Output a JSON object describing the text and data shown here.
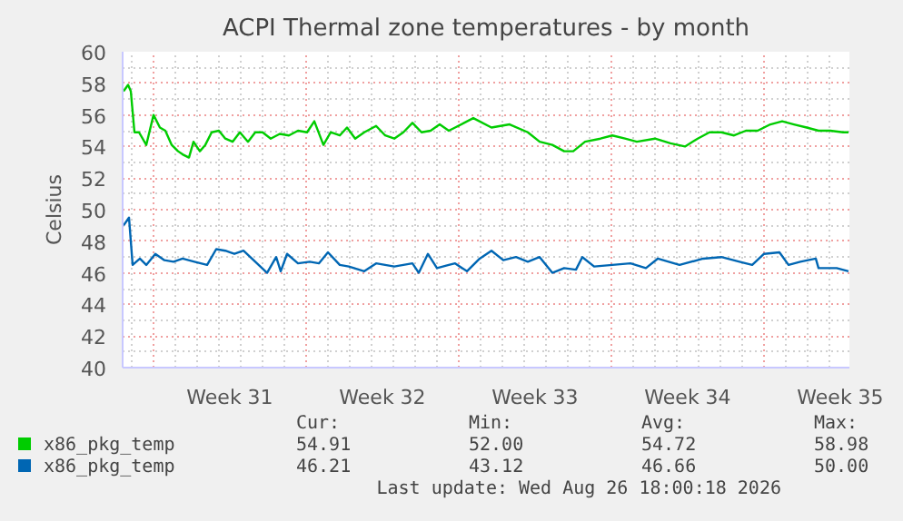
{
  "chart_data": {
    "type": "line",
    "title": "ACPI Thermal zone temperatures - by month",
    "ylabel": "Celsius",
    "xlim": [
      "2026-07-25T14:00",
      "2026-08-27T22:00"
    ],
    "ylim": [
      40,
      60
    ],
    "xticks": [
      {
        "value": "2026-07-27",
        "label": null
      },
      {
        "value": "2026-07-30T12:00",
        "label": "Week 31"
      },
      {
        "value": "2026-08-03",
        "label": null
      },
      {
        "value": "2026-08-06T12:00",
        "label": "Week 32"
      },
      {
        "value": "2026-08-10",
        "label": null
      },
      {
        "value": "2026-08-13T12:00",
        "label": "Week 33"
      },
      {
        "value": "2026-08-17",
        "label": null
      },
      {
        "value": "2026-08-20T12:00",
        "label": "Week 34"
      },
      {
        "value": "2026-08-24",
        "label": null
      },
      {
        "value": "2026-08-27T12:00",
        "label": "Week 35"
      }
    ],
    "yticks": [
      40,
      42,
      44,
      46,
      48,
      50,
      52,
      54,
      56,
      58,
      60
    ],
    "grid": true,
    "legend": "bottom",
    "marker": "none",
    "line_style": "solid",
    "series": [
      {
        "name": "x86_pkg_temp",
        "color": "#00cc00",
        "x": [
          "2026-07-25T15:00",
          "2026-07-25T20:00",
          "2026-07-25T23:00",
          "2026-07-26T03:00",
          "2026-07-26T08:00",
          "2026-07-26T16:00",
          "2026-07-27T00:00",
          "2026-07-27T07:00",
          "2026-07-27T13:00",
          "2026-07-27T20:00",
          "2026-07-28T03:00",
          "2026-07-28T08:00",
          "2026-07-28T15:00",
          "2026-07-28T20:00",
          "2026-07-29T03:00",
          "2026-07-29T09:00",
          "2026-07-29T16:00",
          "2026-07-30T00:00",
          "2026-07-30T07:00",
          "2026-07-30T15:00",
          "2026-07-30T23:00",
          "2026-07-31T08:00",
          "2026-07-31T16:00",
          "2026-08-01T00:00",
          "2026-08-01T09:00",
          "2026-08-01T19:00",
          "2026-08-02T05:00",
          "2026-08-02T15:00",
          "2026-08-03T01:00",
          "2026-08-03T09:00",
          "2026-08-03T19:00",
          "2026-08-04T03:00",
          "2026-08-04T13:00",
          "2026-08-04T21:00",
          "2026-08-05T06:00",
          "2026-08-05T16:00",
          "2026-08-06T05:00",
          "2026-08-06T15:00",
          "2026-08-07T01:00",
          "2026-08-07T11:00",
          "2026-08-07T21:00",
          "2026-08-08T07:00",
          "2026-08-08T17:00",
          "2026-08-09T03:00",
          "2026-08-09T13:00",
          "2026-08-09T20:00",
          "2026-08-10T16:00",
          "2026-08-11T12:00",
          "2026-08-12T08:00",
          "2026-08-13T04:00",
          "2026-08-13T17:00",
          "2026-08-14T07:00",
          "2026-08-14T20:00",
          "2026-08-15T06:00",
          "2026-08-15T19:00",
          "2026-08-16T12:00",
          "2026-08-17T01:00",
          "2026-08-17T15:00",
          "2026-08-18T04:00",
          "2026-08-19T00:00",
          "2026-08-19T17:00",
          "2026-08-20T09:00",
          "2026-08-20T23:00",
          "2026-08-21T12:00",
          "2026-08-22T01:00",
          "2026-08-22T15:00",
          "2026-08-23T04:00",
          "2026-08-23T17:00",
          "2026-08-24T07:00",
          "2026-08-24T20:00",
          "2026-08-25T09:00",
          "2026-08-25T23:00",
          "2026-08-26T12:00",
          "2026-08-27T01:00",
          "2026-08-27T15:00",
          "2026-08-27T21:00"
        ],
        "values": [
          57.5,
          57.9,
          57.5,
          54.9,
          54.9,
          54.1,
          56.0,
          55.2,
          55.0,
          54.1,
          53.7,
          53.5,
          53.3,
          54.3,
          53.7,
          54.1,
          54.9,
          55.0,
          54.5,
          54.3,
          54.9,
          54.3,
          54.9,
          54.9,
          54.5,
          54.8,
          54.7,
          55.0,
          54.9,
          55.6,
          54.1,
          54.9,
          54.7,
          55.2,
          54.5,
          54.9,
          55.3,
          54.7,
          54.5,
          54.9,
          55.5,
          54.9,
          55.0,
          55.4,
          55.0,
          55.2,
          55.8,
          55.2,
          55.4,
          54.9,
          54.3,
          54.1,
          53.7,
          53.7,
          54.3,
          54.5,
          54.7,
          54.5,
          54.3,
          54.5,
          54.2,
          54.0,
          54.5,
          54.9,
          54.9,
          54.7,
          55.0,
          55.0,
          55.4,
          55.6,
          55.4,
          55.2,
          55.0,
          55.0,
          54.9,
          54.9
        ]
      },
      {
        "name": "x86_pkg_temp",
        "color": "#0066b3",
        "x": [
          "2026-07-25T15:00",
          "2026-07-25T21:00",
          "2026-07-26T01:00",
          "2026-07-26T09:00",
          "2026-07-26T16:00",
          "2026-07-27T02:00",
          "2026-07-27T12:00",
          "2026-07-27T22:00",
          "2026-07-28T08:00",
          "2026-07-28T21:00",
          "2026-07-29T11:00",
          "2026-07-29T21:00",
          "2026-07-30T07:00",
          "2026-07-30T17:00",
          "2026-07-31T03:00",
          "2026-07-31T16:00",
          "2026-08-01T05:00",
          "2026-08-01T15:00",
          "2026-08-01T20:00",
          "2026-08-02T03:00",
          "2026-08-02T15:00",
          "2026-08-03T04:00",
          "2026-08-03T14:00",
          "2026-08-04T00:00",
          "2026-08-04T13:00",
          "2026-08-04T23:00",
          "2026-08-05T16:00",
          "2026-08-06T05:00",
          "2026-08-07T01:00",
          "2026-08-07T21:00",
          "2026-08-08T04:00",
          "2026-08-08T14:00",
          "2026-08-09T00:00",
          "2026-08-09T13:00",
          "2026-08-09T20:00",
          "2026-08-10T09:00",
          "2026-08-10T23:00",
          "2026-08-11T12:00",
          "2026-08-12T01:00",
          "2026-08-12T15:00",
          "2026-08-13T04:00",
          "2026-08-13T17:00",
          "2026-08-14T07:00",
          "2026-08-14T20:00",
          "2026-08-15T09:00",
          "2026-08-15T16:00",
          "2026-08-16T05:00",
          "2026-08-17T01:00",
          "2026-08-17T21:00",
          "2026-08-18T14:00",
          "2026-08-19T03:00",
          "2026-08-20T03:00",
          "2026-08-21T05:00",
          "2026-08-22T01:00",
          "2026-08-22T21:00",
          "2026-08-23T11:00",
          "2026-08-24T00:00",
          "2026-08-24T17:00",
          "2026-08-25T03:00",
          "2026-08-25T16:00",
          "2026-08-26T09:00",
          "2026-08-26T12:00",
          "2026-08-27T08:00",
          "2026-08-27T21:00"
        ],
        "values": [
          49.0,
          49.5,
          46.5,
          46.9,
          46.5,
          47.2,
          46.8,
          46.7,
          46.9,
          46.7,
          46.5,
          47.5,
          47.4,
          47.2,
          47.4,
          46.7,
          46.0,
          47.0,
          46.1,
          47.2,
          46.6,
          46.7,
          46.6,
          47.3,
          46.5,
          46.4,
          46.1,
          46.6,
          46.4,
          46.6,
          46.0,
          47.2,
          46.3,
          46.5,
          46.6,
          46.1,
          46.9,
          47.4,
          46.8,
          47.0,
          46.7,
          47.0,
          46.0,
          46.3,
          46.2,
          47.0,
          46.4,
          46.5,
          46.6,
          46.3,
          46.9,
          46.5,
          46.9,
          47.0,
          46.7,
          46.5,
          47.2,
          47.3,
          46.5,
          46.7,
          46.9,
          46.3,
          46.3,
          46.1
        ]
      }
    ],
    "annotations": [
      "Cur:",
      "Min:",
      "Avg:",
      "Max:",
      "54.91",
      "52.00",
      "54.72",
      "58.98",
      "46.21",
      "43.12",
      "46.66",
      "50.00",
      "Last update: Wed Aug 26 18:00:18 2026"
    ]
  }
}
